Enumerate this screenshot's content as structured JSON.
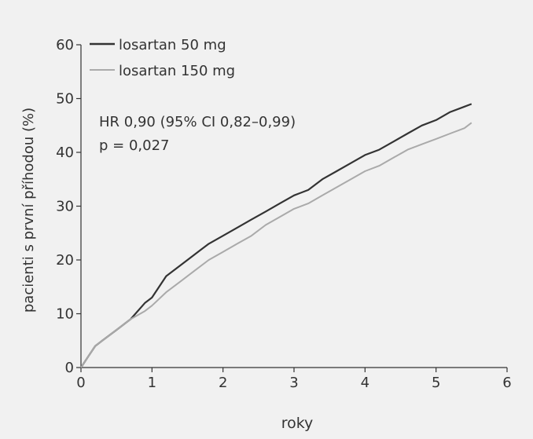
{
  "chart_data": {
    "type": "line",
    "title": "",
    "xlabel": "roky",
    "ylabel": "pacienti s první příhodou (%)",
    "xlim": [
      0,
      6
    ],
    "ylim": [
      0,
      60
    ],
    "xticks": [
      "0",
      "1",
      "2",
      "3",
      "4",
      "5",
      "6"
    ],
    "yticks": [
      "0",
      "10",
      "20",
      "30",
      "40",
      "50",
      "60"
    ],
    "grid": false,
    "legend_position": "top-left",
    "annotations": [
      "HR 0,90 (95% CI 0,82–0,99)",
      "p = 0,027"
    ],
    "series": [
      {
        "name": "losartan 50 mg",
        "color": "#333333",
        "x": [
          0,
          0.1,
          0.2,
          0.3,
          0.5,
          0.7,
          0.9,
          1.0,
          1.2,
          1.4,
          1.6,
          1.8,
          2.0,
          2.2,
          2.4,
          2.6,
          2.8,
          3.0,
          3.2,
          3.4,
          3.6,
          3.8,
          4.0,
          4.2,
          4.4,
          4.6,
          4.8,
          5.0,
          5.2,
          5.4,
          5.5
        ],
        "y": [
          0,
          2,
          4,
          5,
          7,
          9,
          12,
          13,
          17,
          19,
          21,
          23,
          24.5,
          26,
          27.5,
          29,
          30.5,
          32,
          33,
          35,
          36.5,
          38,
          39.5,
          40.5,
          42,
          43.5,
          45,
          46,
          47.5,
          48.5,
          49
        ]
      },
      {
        "name": "losartan 150 mg",
        "color": "#aaaaaa",
        "x": [
          0,
          0.1,
          0.2,
          0.3,
          0.5,
          0.7,
          0.9,
          1.0,
          1.2,
          1.4,
          1.6,
          1.8,
          2.0,
          2.2,
          2.4,
          2.6,
          2.8,
          3.0,
          3.2,
          3.4,
          3.6,
          3.8,
          4.0,
          4.2,
          4.4,
          4.6,
          4.8,
          5.0,
          5.2,
          5.4,
          5.5
        ],
        "y": [
          0,
          2,
          4,
          5,
          7,
          9,
          10.5,
          11.5,
          14,
          16,
          18,
          20,
          21.5,
          23,
          24.5,
          26.5,
          28,
          29.5,
          30.5,
          32,
          33.5,
          35,
          36.5,
          37.5,
          39,
          40.5,
          41.5,
          42.5,
          43.5,
          44.5,
          45.5
        ]
      }
    ]
  }
}
